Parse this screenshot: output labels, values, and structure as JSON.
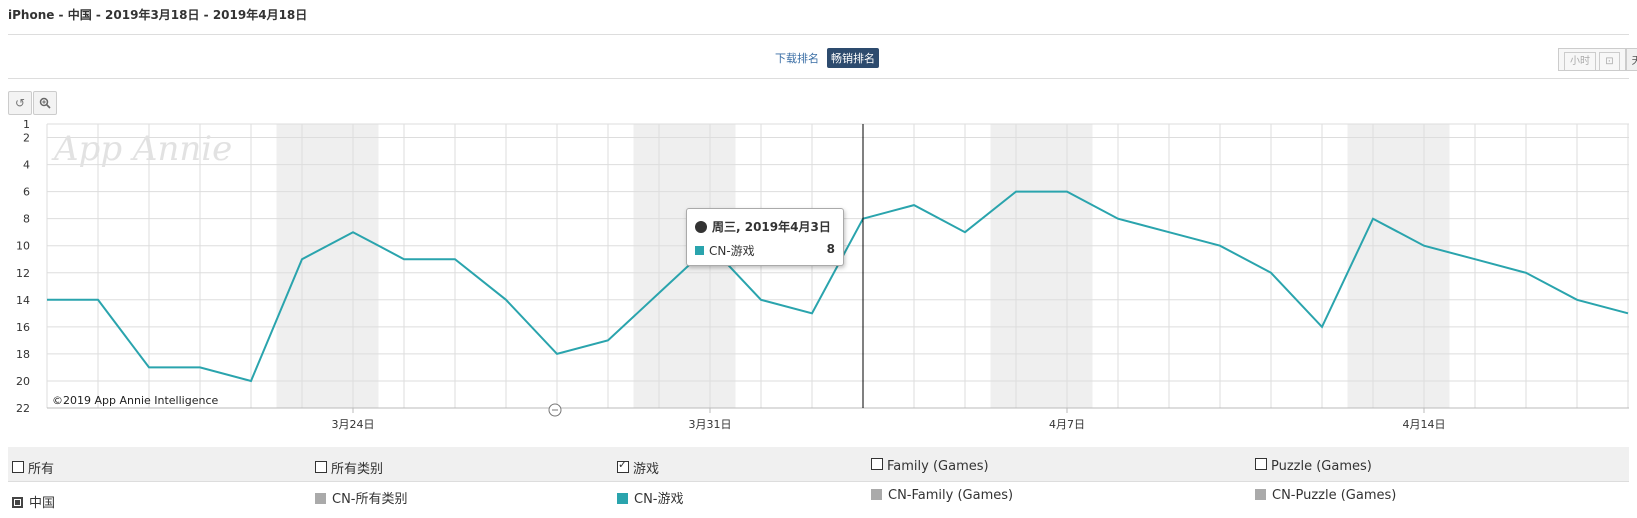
{
  "header": {
    "title": "iPhone - 中国 - 2019年3月18日 - 2019年4月18日"
  },
  "tabs": [
    {
      "label": "下载排名",
      "active": false
    },
    {
      "label": "畅销排名",
      "active": true
    }
  ],
  "granularity": {
    "hour_label": "小时",
    "day_label": "天"
  },
  "toolbar": {
    "reset_icon": "undo-icon",
    "zoom_icon": "zoom-icon"
  },
  "colors": {
    "series": "#2aa4ad",
    "weekend": "#efefef",
    "grid": "#dddddd"
  },
  "chart_data": {
    "type": "line",
    "watermark": "App Annie",
    "credit": "©2019 App Annie Intelligence",
    "y_inverted": true,
    "ylim": [
      1,
      22
    ],
    "y_ticks": [
      1,
      2,
      4,
      6,
      8,
      10,
      12,
      14,
      16,
      18,
      20,
      22
    ],
    "x_start": "2019-03-18",
    "x_tick_labels": [
      {
        "date": "2019-03-24",
        "label": "3月24日"
      },
      {
        "date": "2019-03-31",
        "label": "3月31日"
      },
      {
        "date": "2019-04-07",
        "label": "4月7日"
      },
      {
        "date": "2019-04-14",
        "label": "4月14日"
      }
    ],
    "weekends": [
      [
        "2019-03-23",
        "2019-03-24"
      ],
      [
        "2019-03-30",
        "2019-03-31"
      ],
      [
        "2019-04-06",
        "2019-04-07"
      ],
      [
        "2019-04-13",
        "2019-04-14"
      ]
    ],
    "crosshair_date": "2019-04-03",
    "series": [
      {
        "name": "CN-游戏",
        "x": [
          "2019-03-18",
          "2019-03-19",
          "2019-03-20",
          "2019-03-21",
          "2019-03-22",
          "2019-03-23",
          "2019-03-24",
          "2019-03-25",
          "2019-03-26",
          "2019-03-27",
          "2019-03-28",
          "2019-03-29",
          "2019-03-30",
          "2019-03-31",
          "2019-04-01",
          "2019-04-02",
          "2019-04-03",
          "2019-04-04",
          "2019-04-05",
          "2019-04-06",
          "2019-04-07",
          "2019-04-08",
          "2019-04-09",
          "2019-04-10",
          "2019-04-11",
          "2019-04-12",
          "2019-04-13",
          "2019-04-14",
          "2019-04-15",
          "2019-04-16",
          "2019-04-17",
          "2019-04-18"
        ],
        "values": [
          14,
          14,
          19,
          19,
          20,
          11,
          9,
          11,
          11,
          14,
          18,
          17,
          13.5,
          10,
          14,
          15,
          8,
          7,
          9,
          6,
          6,
          8,
          9,
          10,
          12,
          16,
          8,
          10,
          11,
          12,
          14,
          15
        ]
      }
    ],
    "tooltip": {
      "date_label": "周三, 2019年4月3日",
      "series_label": "CN-游戏",
      "value": "8"
    }
  },
  "legend": {
    "filters": [
      {
        "label": "所有",
        "checked": false
      },
      {
        "label": "所有类别",
        "checked": false
      },
      {
        "label": "游戏",
        "checked": true
      },
      {
        "label": "Family (Games)",
        "checked": false
      },
      {
        "label": "Puzzle (Games)",
        "checked": false
      }
    ],
    "series": [
      {
        "label": "中国",
        "color": "#444444"
      },
      {
        "label": "CN-所有类别",
        "color": "#aaaaaa"
      },
      {
        "label": "CN-游戏",
        "color": "#2aa4ad"
      },
      {
        "label": "CN-Family (Games)",
        "color": "#aaaaaa"
      },
      {
        "label": "CN-Puzzle (Games)",
        "color": "#aaaaaa"
      }
    ]
  }
}
